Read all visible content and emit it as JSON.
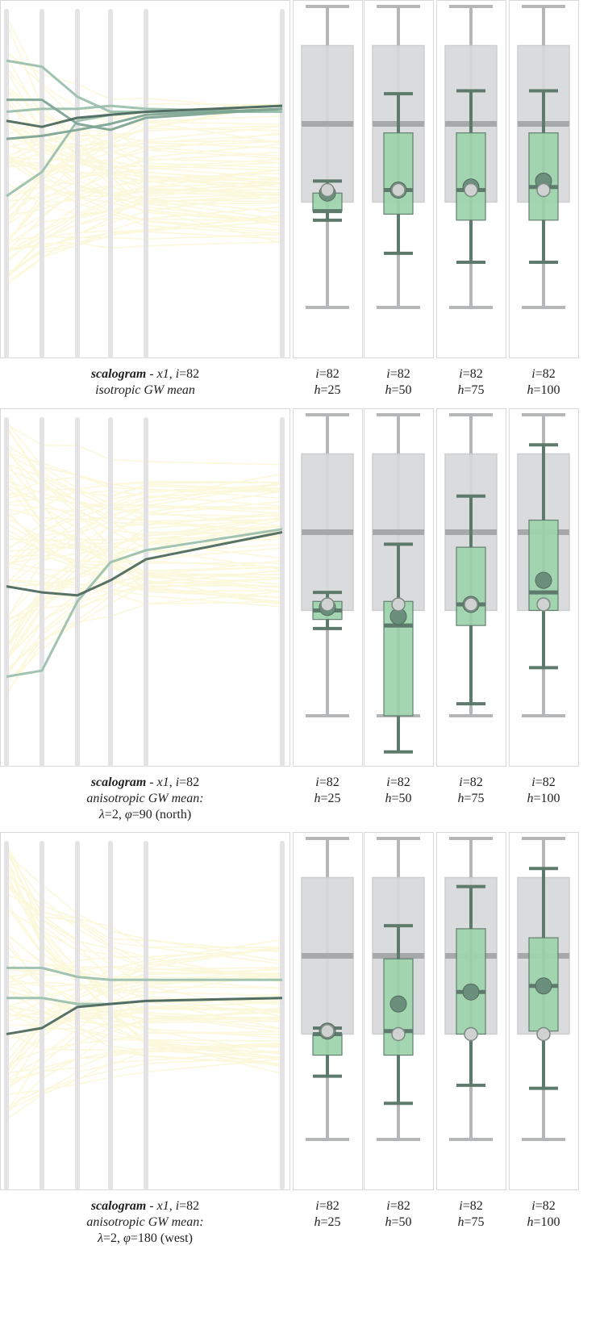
{
  "colors": {
    "panel_border": "#d9d9d9",
    "axis": "#e3e3e6",
    "bg_line": "#fbf8d8",
    "green_fill": "#9fd4ad",
    "green_stroke": "#5d7a6c",
    "grey_box": "#d7d8da",
    "grey_whisker": "#b5b6b8",
    "grey_median": "#a7a8aa",
    "mean_dot": "#6b8f7d",
    "value_dot": "#cfd2d0"
  },
  "chart_data": [
    {
      "type": "box",
      "name": "row-1",
      "parallel_lines": [
        {
          "shade": 0.55,
          "values": [
            0.62,
            0.6,
            0.63,
            0.64,
            0.65,
            0.67
          ]
        },
        {
          "shade": 0.35,
          "values": [
            0.56,
            0.57,
            0.59,
            0.61,
            0.64,
            0.66
          ]
        },
        {
          "shade": 0.35,
          "values": [
            0.69,
            0.69,
            0.61,
            0.59,
            0.63,
            0.66
          ]
        },
        {
          "shade": 0.25,
          "values": [
            0.82,
            0.8,
            0.7,
            0.65,
            0.65,
            0.67
          ]
        },
        {
          "shade": 0.3,
          "values": [
            0.65,
            0.66,
            0.66,
            0.67,
            0.66,
            0.65
          ]
        },
        {
          "shade": 0.25,
          "values": [
            0.37,
            0.45,
            0.62,
            0.64,
            0.65,
            0.65
          ]
        }
      ],
      "caption": {
        "bold": "scalogram",
        "mid": " - ",
        "var": "x1",
        "sep": ", ",
        "i_label": "i",
        "i_val": "=82",
        "line2": "isotropic GW mean",
        "line3": ""
      },
      "reference": {
        "whisker_low": 0,
        "q1": 0.35,
        "median": 0.61,
        "q3": 0.87,
        "whisker_high": 1.0
      },
      "panels": [
        {
          "i_label": "i",
          "i_val": "=82",
          "h_label": "h",
          "h_val": "=25",
          "whisker_low": 0.29,
          "q1": 0.32,
          "median": 0.32,
          "q3": 0.38,
          "whisker_high": 0.42,
          "mean": 0.38,
          "value": 0.39
        },
        {
          "i_label": "i",
          "i_val": "=82",
          "h_label": "h",
          "h_val": "=50",
          "whisker_low": 0.18,
          "q1": 0.31,
          "median": 0.39,
          "q3": 0.58,
          "whisker_high": 0.71,
          "mean": 0.39,
          "value": 0.39
        },
        {
          "i_label": "i",
          "i_val": "=82",
          "h_label": "h",
          "h_val": "=75",
          "whisker_low": 0.15,
          "q1": 0.29,
          "median": 0.39,
          "q3": 0.58,
          "whisker_high": 0.72,
          "mean": 0.4,
          "value": 0.39
        },
        {
          "i_label": "i",
          "i_val": "=82",
          "h_label": "h",
          "h_val": "=100",
          "whisker_low": 0.15,
          "q1": 0.29,
          "median": 0.4,
          "q3": 0.58,
          "whisker_high": 0.72,
          "mean": 0.42,
          "value": 0.39
        }
      ]
    },
    {
      "type": "box",
      "name": "row-2",
      "parallel_lines": [
        {
          "shade": 0.55,
          "values": [
            0.43,
            0.41,
            0.4,
            0.45,
            0.52,
            0.61
          ]
        },
        {
          "shade": 0.3,
          "values": [
            0.13,
            0.15,
            0.38,
            0.51,
            0.55,
            0.62
          ]
        }
      ],
      "caption": {
        "bold": "scalogram",
        "mid": " - ",
        "var": "x1",
        "sep": ", ",
        "i_label": "i",
        "i_val": "=82",
        "line2": "anisotropic GW mean:",
        "line3_lambda": "λ",
        "line3_a": "=2, ",
        "line3_phi": "φ",
        "line3_b": "=90 (north)"
      },
      "reference": {
        "whisker_low": 0,
        "q1": 0.35,
        "median": 0.61,
        "q3": 0.87,
        "whisker_high": 1.0
      },
      "panels": [
        {
          "i_label": "i",
          "i_val": "=82",
          "h_label": "h",
          "h_val": "=25",
          "whisker_low": 0.29,
          "q1": 0.32,
          "median": 0.35,
          "q3": 0.38,
          "whisker_high": 0.41,
          "mean": 0.36,
          "value": 0.37
        },
        {
          "i_label": "i",
          "i_val": "=82",
          "h_label": "h",
          "h_val": "=50",
          "whisker_low": -0.12,
          "q1": 0.0,
          "median": 0.3,
          "q3": 0.38,
          "whisker_high": 0.57,
          "mean": 0.33,
          "value": 0.37
        },
        {
          "i_label": "i",
          "i_val": "=82",
          "h_label": "h",
          "h_val": "=75",
          "whisker_low": 0.04,
          "q1": 0.3,
          "median": 0.37,
          "q3": 0.56,
          "whisker_high": 0.73,
          "mean": 0.37,
          "value": 0.37
        },
        {
          "i_label": "i",
          "i_val": "=82",
          "h_label": "h",
          "h_val": "=100",
          "whisker_low": 0.16,
          "q1": 0.35,
          "median": 0.41,
          "q3": 0.65,
          "whisker_high": 0.9,
          "mean": 0.45,
          "value": 0.37
        }
      ]
    },
    {
      "type": "box",
      "name": "row-3",
      "parallel_lines": [
        {
          "shade": 0.55,
          "values": [
            0.35,
            0.37,
            0.44,
            0.45,
            0.46,
            0.47
          ]
        },
        {
          "shade": 0.25,
          "values": [
            0.57,
            0.57,
            0.54,
            0.53,
            0.53,
            0.53
          ]
        },
        {
          "shade": 0.2,
          "values": [
            0.47,
            0.47,
            0.45,
            0.45,
            0.46,
            0.47
          ]
        }
      ],
      "caption": {
        "bold": "scalogram",
        "mid": " - ",
        "var": "x1",
        "sep": ", ",
        "i_label": "i",
        "i_val": "=82",
        "line2": "anisotropic GW mean:",
        "line3_lambda": "λ",
        "line3_a": "=2, ",
        "line3_phi": "φ",
        "line3_b": "=180 (west)"
      },
      "reference": {
        "whisker_low": 0,
        "q1": 0.35,
        "median": 0.61,
        "q3": 0.87,
        "whisker_high": 1.0
      },
      "panels": [
        {
          "i_label": "i",
          "i_val": "=82",
          "h_label": "h",
          "h_val": "=25",
          "whisker_low": 0.21,
          "q1": 0.28,
          "median": 0.35,
          "q3": 0.35,
          "whisker_high": 0.37,
          "mean": 0.36,
          "value": 0.36
        },
        {
          "i_label": "i",
          "i_val": "=82",
          "h_label": "h",
          "h_val": "=50",
          "whisker_low": 0.12,
          "q1": 0.28,
          "median": 0.36,
          "q3": 0.6,
          "whisker_high": 0.71,
          "mean": 0.45,
          "value": 0.35
        },
        {
          "i_label": "i",
          "i_val": "=82",
          "h_label": "h",
          "h_val": "=75",
          "whisker_low": 0.18,
          "q1": 0.35,
          "median": 0.49,
          "q3": 0.7,
          "whisker_high": 0.84,
          "mean": 0.49,
          "value": 0.35
        },
        {
          "i_label": "i",
          "i_val": "=82",
          "h_label": "h",
          "h_val": "=100",
          "whisker_low": 0.17,
          "q1": 0.36,
          "median": 0.51,
          "q3": 0.67,
          "whisker_high": 0.9,
          "mean": 0.51,
          "value": 0.35
        }
      ]
    }
  ]
}
